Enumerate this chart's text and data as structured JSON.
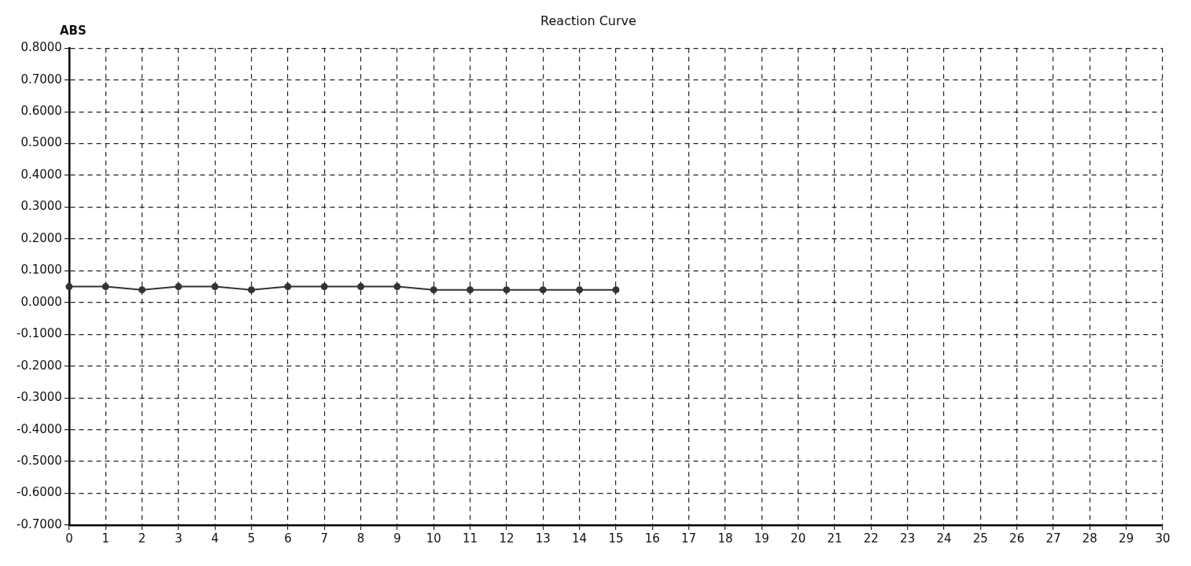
{
  "chart_data": {
    "type": "line",
    "title": "Reaction Curve",
    "ylabel": "ABS",
    "x": [
      0,
      1,
      2,
      3,
      4,
      5,
      6,
      7,
      8,
      9,
      10,
      11,
      12,
      13,
      14,
      15
    ],
    "series": [
      {
        "color": "#333333",
        "values": [
          0.05,
          0.05,
          0.04,
          0.05,
          0.05,
          0.04,
          0.05,
          0.05,
          0.05,
          0.05,
          0.04,
          0.04,
          0.04,
          0.04,
          0.04,
          0.04
        ]
      }
    ],
    "xlim": [
      0,
      30
    ],
    "xticks": [
      0,
      1,
      2,
      3,
      4,
      5,
      6,
      7,
      8,
      9,
      10,
      11,
      12,
      13,
      14,
      15,
      16,
      17,
      18,
      19,
      20,
      21,
      22,
      23,
      24,
      25,
      26,
      27,
      28,
      29,
      30
    ],
    "ylim": [
      -0.7,
      0.8
    ],
    "yticks": [
      {
        "value": -0.7,
        "label": "-0.7000"
      },
      {
        "value": -0.6,
        "label": "-0.6000"
      },
      {
        "value": -0.5,
        "label": "-0.5000"
      },
      {
        "value": -0.4,
        "label": "-0.4000"
      },
      {
        "value": -0.3,
        "label": "-0.3000"
      },
      {
        "value": -0.2,
        "label": "-0.2000"
      },
      {
        "value": -0.1,
        "label": "-0.1000"
      },
      {
        "value": 0,
        "label": "0.0000"
      },
      {
        "value": 0.1,
        "label": "0.1000"
      },
      {
        "value": 0.2,
        "label": "0.2000"
      },
      {
        "value": 0.3,
        "label": "0.3000"
      },
      {
        "value": 0.4,
        "label": "0.4000"
      },
      {
        "value": 0.5,
        "label": "0.5000"
      },
      {
        "value": 0.6,
        "label": "0.6000"
      },
      {
        "value": 0.7,
        "label": "0.7000"
      },
      {
        "value": 0.8,
        "label": "0.8000"
      }
    ],
    "grid": true,
    "marker": "circle",
    "line_style": "solid"
  }
}
